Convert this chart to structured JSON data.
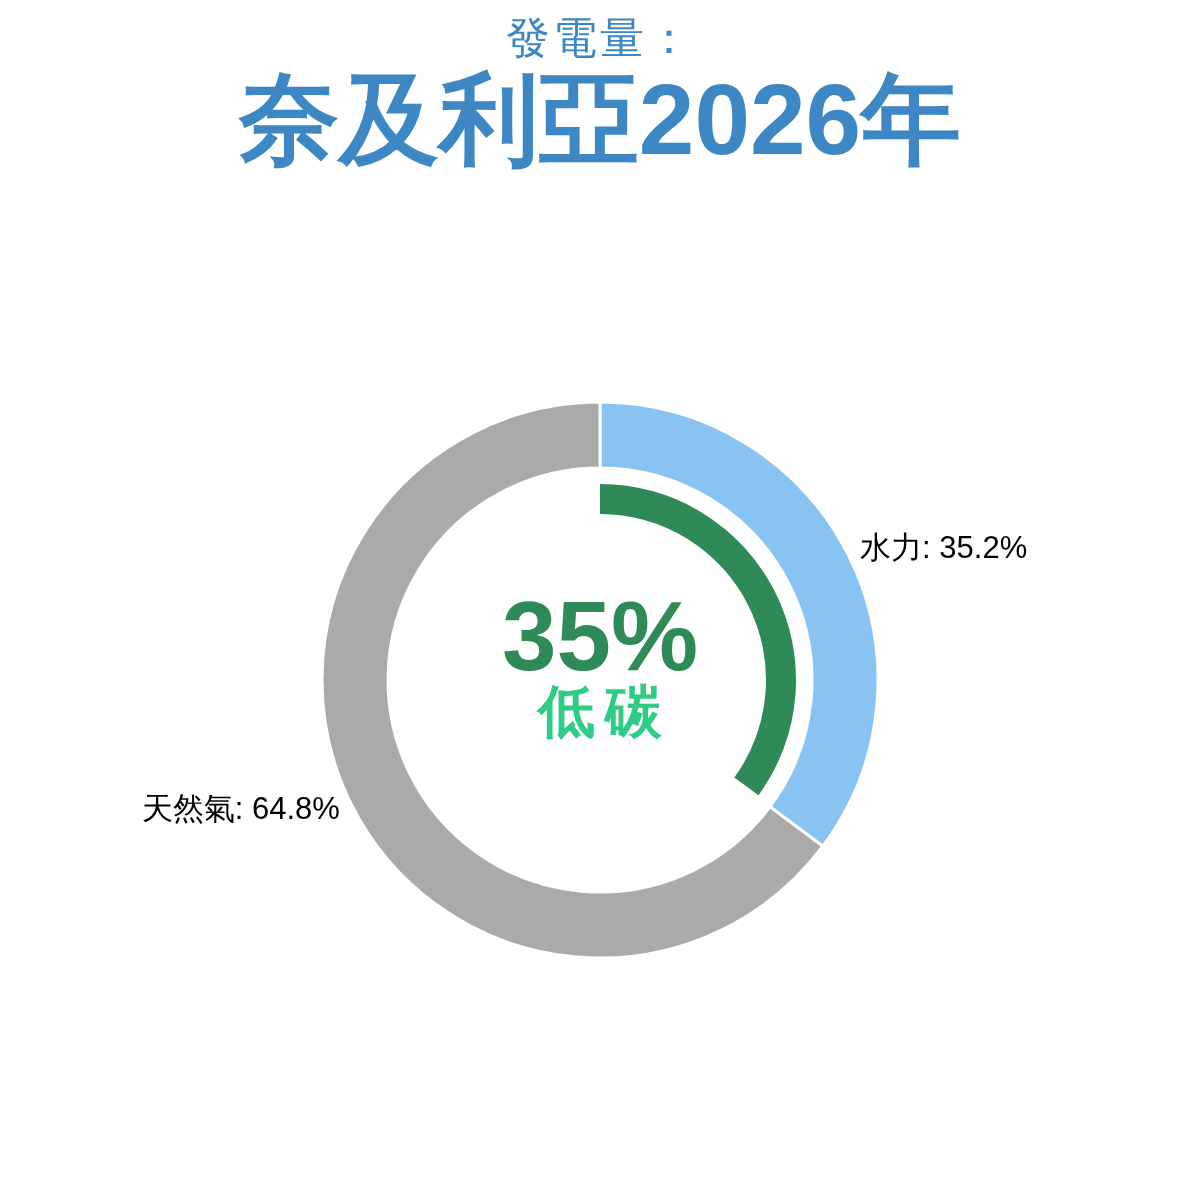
{
  "chart_data": {
    "type": "donut",
    "subtitle": "發電量：",
    "title": "奈及利亞2026年",
    "categories": [
      "水力",
      "天然氣"
    ],
    "series": [
      {
        "values": [
          35.2,
          64.8
        ],
        "colors": [
          "#89c3f2",
          "#aaaaaa"
        ],
        "value_labels": [
          "35.2%",
          "64.8%"
        ]
      },
      {
        "name": "低碳",
        "values": [
          35,
          null
        ],
        "colors": [
          "#2e8b57",
          null
        ],
        "value_labels": [
          "35%",
          null
        ]
      }
    ],
    "legend": false
  }
}
